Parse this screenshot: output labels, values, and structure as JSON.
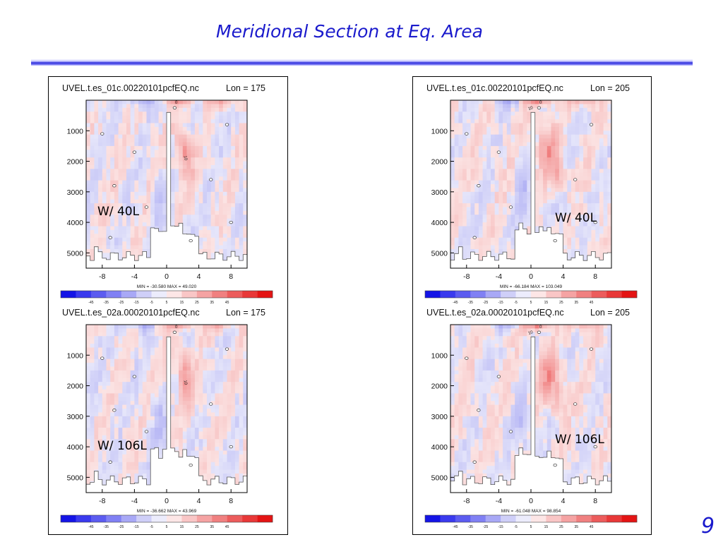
{
  "slide": {
    "title": "Meridional Section at Eq. Area",
    "page_number": "9"
  },
  "colorbar": {
    "labels": [
      "-45",
      "-35",
      "-25",
      "-15",
      "-5",
      "5",
      "15",
      "25",
      "35",
      "45"
    ],
    "colors": [
      "#1414e6",
      "#3a3aee",
      "#5c5cf0",
      "#8080f4",
      "#a8a8f6",
      "#cfcff8",
      "#ececfc",
      "#fde6e6",
      "#f9c6c6",
      "#f5a3a3",
      "#f08080",
      "#ec5c5c",
      "#e83838",
      "#e41414"
    ]
  },
  "chart_data": [
    {
      "type": "heatmap",
      "file": "UVEL.t.es_01c.00220101pcfEQ.nc",
      "lon_label": "Lon = 175",
      "annotation": "W/ 40L",
      "stats": "MIN = -30.580 MAX = 49.020",
      "x_ticks": [
        "-8",
        "-4",
        "0",
        "4",
        "8"
      ],
      "y_ticks": [
        "1000",
        "2000",
        "3000",
        "4000",
        "5000"
      ],
      "xlim": [
        -10,
        10
      ],
      "ylim": [
        5500,
        0
      ],
      "min": -30.58,
      "max": 49.02,
      "contour_labels": [
        "0",
        "10"
      ]
    },
    {
      "type": "heatmap",
      "file": "UVEL.t.es_02a.00020101pcfEQ.nc",
      "lon_label": "Lon = 175",
      "annotation": "W/ 106L",
      "stats": "MIN = -36.662 MAX = 43.969",
      "x_ticks": [
        "-8",
        "-4",
        "0",
        "4",
        "8"
      ],
      "y_ticks": [
        "1000",
        "2000",
        "3000",
        "4000",
        "5000"
      ],
      "xlim": [
        -10,
        10
      ],
      "ylim": [
        5500,
        0
      ],
      "min": -36.662,
      "max": 43.969,
      "contour_labels": [
        "0",
        "10"
      ]
    },
    {
      "type": "heatmap",
      "file": "UVEL.t.es_01c.00220101pcfEQ.nc",
      "lon_label": "Lon = 205",
      "annotation": "W/ 40L",
      "stats": "MIN = -66.184 MAX = 103.049",
      "x_ticks": [
        "-8",
        "-4",
        "0",
        "4",
        "8"
      ],
      "y_ticks": [
        "1000",
        "2000",
        "3000",
        "4000",
        "5000"
      ],
      "xlim": [
        -10,
        10
      ],
      "ylim": [
        5500,
        0
      ],
      "min": -66.184,
      "max": 103.049,
      "contour_labels": [
        "0",
        "10"
      ]
    },
    {
      "type": "heatmap",
      "file": "UVEL.t.es_02a.00020101pcfEQ.nc",
      "lon_label": "Lon = 205",
      "annotation": "W/ 106L",
      "stats": "MIN = -61.048 MAX = 98.854",
      "x_ticks": [
        "-8",
        "-4",
        "0",
        "4",
        "8"
      ],
      "y_ticks": [
        "1000",
        "2000",
        "3000",
        "4000",
        "5000"
      ],
      "xlim": [
        -10,
        10
      ],
      "ylim": [
        5500,
        0
      ],
      "min": -61.048,
      "max": 98.854,
      "contour_labels": [
        "0",
        "10"
      ]
    }
  ]
}
